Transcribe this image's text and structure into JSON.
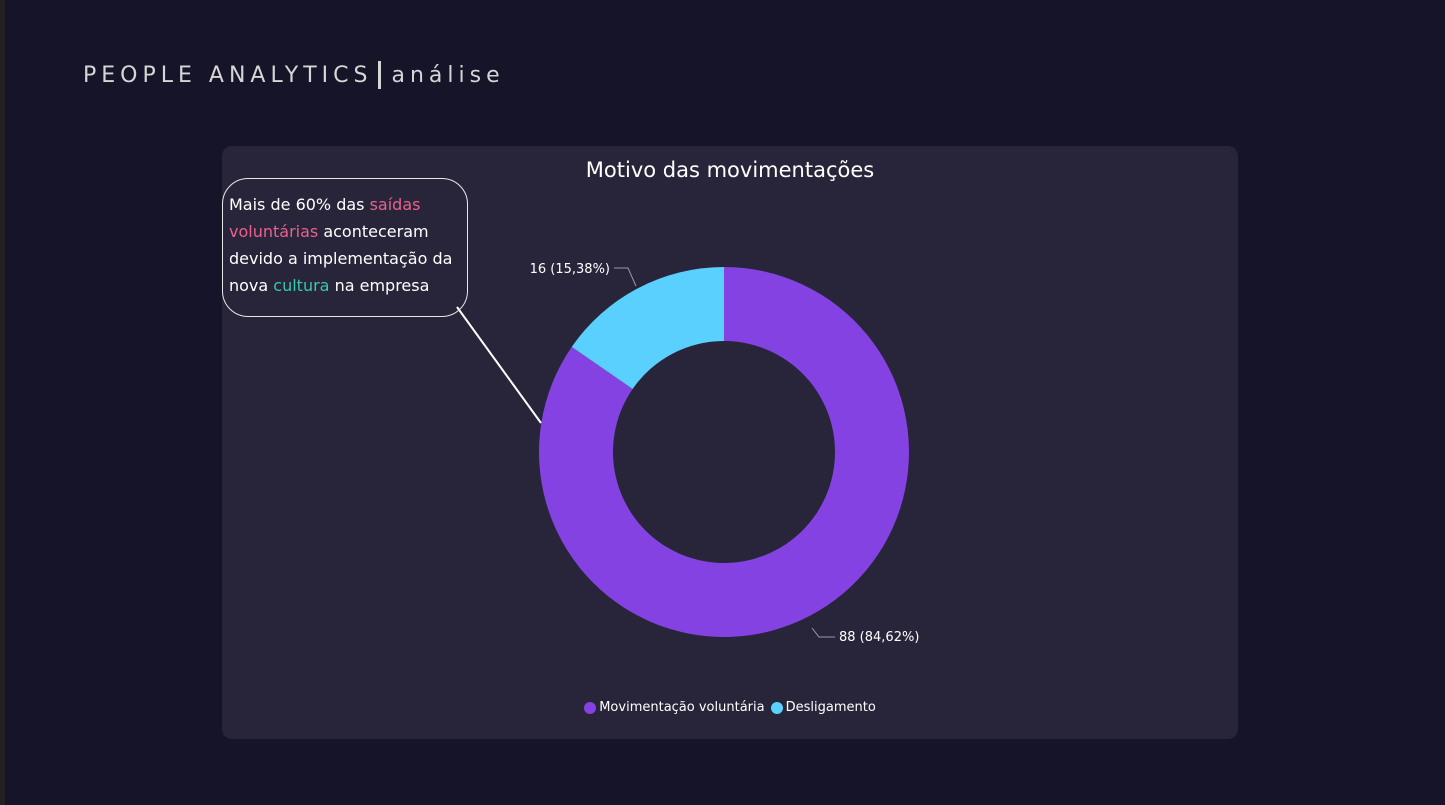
{
  "header": {
    "brand": "PEOPLE ANALYTICS",
    "brand_sub": "análise"
  },
  "callout": {
    "part1": "Mais de 60% das ",
    "highlight1": "saídas voluntárias",
    "part2": " aconteceram devido a implementação da nova ",
    "highlight2": "cultura",
    "part3": " na empresa"
  },
  "colors": {
    "voluntaria": "#8442e2",
    "desligamento": "#5ad0ff",
    "highlight_pink": "#e8628c",
    "highlight_teal": "#35c9a8"
  },
  "chart_data": {
    "type": "pie",
    "variant": "donut",
    "title": "Motivo das movimentações",
    "categories": [
      "Movimentação voluntária",
      "Desligamento"
    ],
    "values": [
      88,
      16
    ],
    "data_labels": [
      "88 (84,62%)",
      "16 (15,38%)"
    ],
    "legend_position": "bottom-center"
  }
}
